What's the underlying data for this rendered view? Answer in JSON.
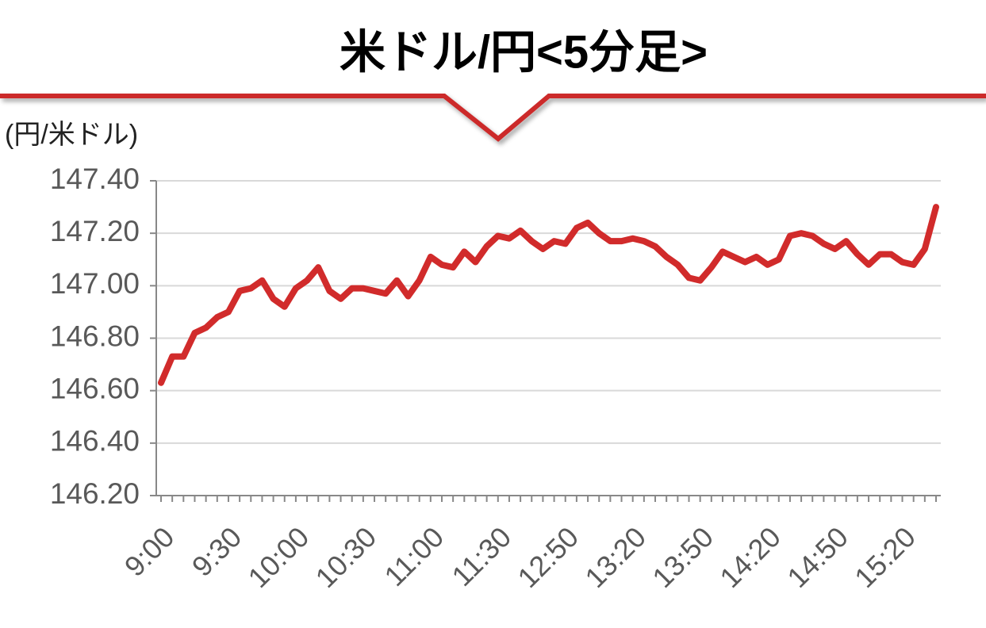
{
  "chart_data": {
    "type": "line",
    "title": "米ドル/円<5分足>",
    "y_label": "(円/米ドル)",
    "categories": [
      "9:00",
      null,
      null,
      null,
      null,
      null,
      "9:30",
      null,
      null,
      null,
      null,
      null,
      "10:00",
      null,
      null,
      null,
      null,
      null,
      "10:30",
      null,
      null,
      null,
      null,
      null,
      "11:00",
      null,
      null,
      null,
      null,
      null,
      "11:30",
      null,
      null,
      null,
      null,
      null,
      "12:50",
      null,
      null,
      null,
      null,
      null,
      "13:20",
      null,
      null,
      null,
      null,
      null,
      "13:50",
      null,
      null,
      null,
      null,
      null,
      "14:20",
      null,
      null,
      null,
      null,
      null,
      "14:50",
      null,
      null,
      null,
      null,
      null,
      "15:20",
      null,
      null,
      null
    ],
    "values": [
      146.63,
      146.73,
      146.73,
      146.82,
      146.84,
      146.88,
      146.9,
      146.98,
      146.99,
      147.02,
      146.95,
      146.92,
      146.99,
      147.02,
      147.07,
      146.98,
      146.95,
      146.99,
      146.99,
      146.98,
      146.97,
      147.02,
      146.96,
      147.02,
      147.11,
      147.08,
      147.07,
      147.13,
      147.09,
      147.15,
      147.19,
      147.18,
      147.21,
      147.17,
      147.14,
      147.17,
      147.16,
      147.22,
      147.24,
      147.2,
      147.17,
      147.17,
      147.18,
      147.17,
      147.15,
      147.11,
      147.08,
      147.03,
      147.02,
      147.07,
      147.13,
      147.11,
      147.09,
      147.11,
      147.08,
      147.1,
      147.19,
      147.2,
      147.19,
      147.16,
      147.14,
      147.17,
      147.12,
      147.08,
      147.12,
      147.12,
      147.09,
      147.08,
      147.14,
      147.3
    ],
    "color": "#d12b2b",
    "ylim": [
      146.2,
      147.4
    ],
    "yticks": [
      {
        "value": 146.2,
        "label": "146.20"
      },
      {
        "value": 146.4,
        "label": "146.40"
      },
      {
        "value": 146.6,
        "label": "146.60"
      },
      {
        "value": 146.8,
        "label": "146.80"
      },
      {
        "value": 147.0,
        "label": "147.00"
      },
      {
        "value": 147.2,
        "label": "147.20"
      },
      {
        "value": 147.4,
        "label": "147.40"
      }
    ],
    "grid": true
  }
}
